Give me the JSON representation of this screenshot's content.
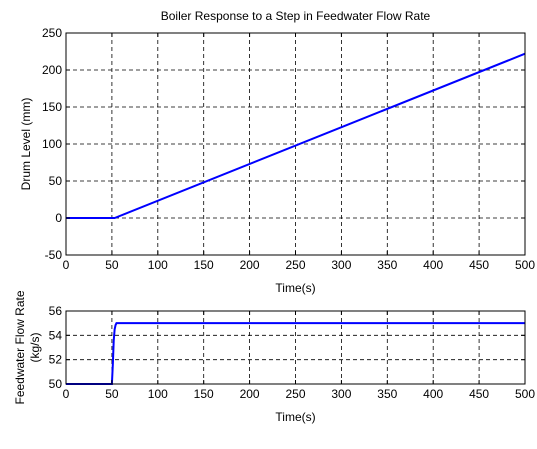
{
  "chart_data": [
    {
      "type": "line",
      "title": "Boiler Response to a Step in Feedwater Flow Rate",
      "xlabel": "Time(s)",
      "ylabel": "Drum Level (mm)",
      "xlim": [
        0,
        500
      ],
      "ylim": [
        -50,
        250
      ],
      "xticks": [
        0,
        50,
        100,
        150,
        200,
        250,
        300,
        350,
        400,
        450,
        500
      ],
      "yticks": [
        -50,
        0,
        50,
        100,
        150,
        200,
        250
      ],
      "grid": true,
      "series": [
        {
          "color": "#0000ff",
          "x": [
            0,
            53,
            500
          ],
          "y": [
            0,
            0,
            222
          ]
        }
      ]
    },
    {
      "type": "line",
      "title": "",
      "xlabel": "Time(s)",
      "ylabel": [
        "Feedwater Flow Rate",
        "(kg/s)"
      ],
      "xlim": [
        0,
        500
      ],
      "ylim": [
        50,
        56
      ],
      "xticks": [
        0,
        50,
        100,
        150,
        200,
        250,
        300,
        350,
        400,
        450,
        500
      ],
      "yticks": [
        50,
        52,
        54,
        56
      ],
      "grid": true,
      "series": [
        {
          "color": "#0000ff",
          "x": [
            0,
            50,
            51,
            52,
            53,
            54,
            55,
            500
          ],
          "y": [
            50,
            50,
            51.6,
            53.6,
            54.5,
            54.85,
            55,
            55
          ]
        }
      ]
    }
  ]
}
